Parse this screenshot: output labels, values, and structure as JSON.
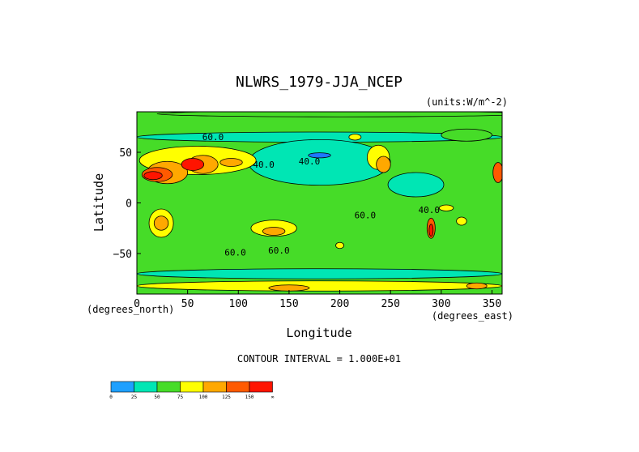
{
  "chart_data": {
    "type": "heatmap",
    "title": "NLWRS_1979-JJA_NCEP",
    "units_label": "(units:W/m^-2)",
    "xlabel": "Longitude",
    "ylabel": "Latitude",
    "x_unit_label": "(degrees_east)",
    "y_unit_label": "(degrees_north)",
    "xlim": [
      0,
      360
    ],
    "ylim": [
      -90,
      90
    ],
    "x_ticks": [
      0,
      50,
      100,
      150,
      200,
      250,
      300,
      350
    ],
    "y_ticks": [
      50,
      0,
      -50
    ],
    "contour_interval_text": "CONTOUR INTERVAL = 1.000E+01",
    "background_level": 50,
    "contour_labels": [
      {
        "text": "60.0",
        "lon": 75,
        "lat": 62
      },
      {
        "text": "40.0",
        "lon": 125,
        "lat": 35
      },
      {
        "text": "40.0",
        "lon": 170,
        "lat": 38
      },
      {
        "text": "60.0",
        "lon": 225,
        "lat": -15
      },
      {
        "text": "40.0",
        "lon": 288,
        "lat": -10
      },
      {
        "text": "60.0",
        "lon": 97,
        "lat": -52
      },
      {
        "text": "60.0",
        "lon": 140,
        "lat": -50
      }
    ],
    "regions": [
      {
        "lon": 200,
        "lat": 88,
        "w": 360,
        "h": 6,
        "level": 60
      },
      {
        "lon": 180,
        "lat": 65,
        "w": 360,
        "h": 10,
        "level": 40
      },
      {
        "lon": 325,
        "lat": 67,
        "w": 50,
        "h": 12,
        "level": 60
      },
      {
        "lon": 180,
        "lat": 40,
        "w": 140,
        "h": 45,
        "level": 40
      },
      {
        "lon": 180,
        "lat": 47,
        "w": 22,
        "h": 5,
        "level": 20
      },
      {
        "lon": 275,
        "lat": 18,
        "w": 55,
        "h": 24,
        "level": 40
      },
      {
        "lon": 60,
        "lat": 42,
        "w": 115,
        "h": 28,
        "level": 75
      },
      {
        "lon": 30,
        "lat": 30,
        "w": 40,
        "h": 22,
        "level": 100
      },
      {
        "lon": 20,
        "lat": 28,
        "w": 30,
        "h": 14,
        "level": 125
      },
      {
        "lon": 16,
        "lat": 27,
        "w": 18,
        "h": 8,
        "level": 150
      },
      {
        "lon": 65,
        "lat": 38,
        "w": 30,
        "h": 18,
        "level": 100
      },
      {
        "lon": 55,
        "lat": 38,
        "w": 22,
        "h": 12,
        "level": 150
      },
      {
        "lon": 93,
        "lat": 40,
        "w": 22,
        "h": 8,
        "level": 100
      },
      {
        "lon": 238,
        "lat": 45,
        "w": 22,
        "h": 24,
        "level": 75
      },
      {
        "lon": 243,
        "lat": 38,
        "w": 14,
        "h": 16,
        "level": 100
      },
      {
        "lon": 356,
        "lat": 30,
        "w": 10,
        "h": 20,
        "level": 125
      },
      {
        "lon": 24,
        "lat": -20,
        "w": 24,
        "h": 28,
        "level": 75
      },
      {
        "lon": 24,
        "lat": -20,
        "w": 14,
        "h": 14,
        "level": 100
      },
      {
        "lon": 135,
        "lat": -25,
        "w": 45,
        "h": 16,
        "level": 75
      },
      {
        "lon": 135,
        "lat": -28,
        "w": 22,
        "h": 8,
        "level": 100
      },
      {
        "lon": 290,
        "lat": -25,
        "w": 8,
        "h": 20,
        "level": 125
      },
      {
        "lon": 290,
        "lat": -27,
        "w": 4,
        "h": 12,
        "level": 150
      },
      {
        "lon": 320,
        "lat": -18,
        "w": 10,
        "h": 8,
        "level": 75
      },
      {
        "lon": 200,
        "lat": -42,
        "w": 8,
        "h": 6,
        "level": 75
      },
      {
        "lon": 305,
        "lat": -5,
        "w": 14,
        "h": 6,
        "level": 75
      },
      {
        "lon": 215,
        "lat": 65,
        "w": 12,
        "h": 6,
        "level": 75
      },
      {
        "lon": 180,
        "lat": -70,
        "w": 360,
        "h": 10,
        "level": 40
      },
      {
        "lon": 180,
        "lat": -82,
        "w": 360,
        "h": 10,
        "level": 75
      },
      {
        "lon": 150,
        "lat": -84,
        "w": 40,
        "h": 6,
        "level": 100
      },
      {
        "lon": 335,
        "lat": -82,
        "w": 20,
        "h": 6,
        "level": 100
      }
    ]
  },
  "legend": {
    "thresholds": [
      "0",
      "25",
      "50",
      "75",
      "100",
      "125",
      "150",
      "∞"
    ],
    "colors": [
      "#1ea0ff",
      "#00e6b4",
      "#46dc28",
      "#ffff00",
      "#ffa800",
      "#ff5a00",
      "#ff1400"
    ]
  },
  "palette": {
    "deep_blue": "#1e78ff",
    "blue": "#1ea0ff",
    "aqua": "#00e6b4",
    "green": "#46dc28",
    "yellow": "#ffff00",
    "orange": "#ffa800",
    "red_orange": "#ff5a00",
    "red": "#ff1400"
  }
}
